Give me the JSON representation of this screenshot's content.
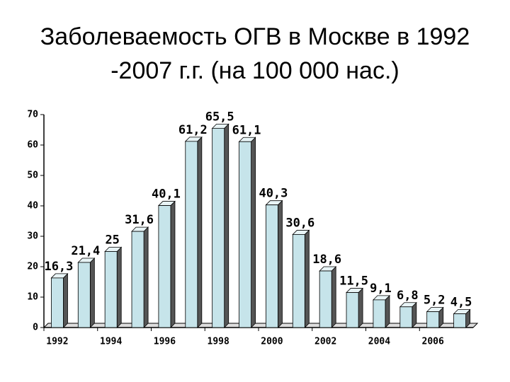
{
  "chart_data": {
    "type": "bar",
    "title": "Заболеваемость ОГВ в Москве в 1992 -2007 г.г. (на 100 000 нас.)",
    "categories": [
      "1992",
      null,
      "1994",
      null,
      "1996",
      null,
      "1998",
      null,
      "2000",
      null,
      "2002",
      null,
      "2004",
      null,
      "2006",
      null
    ],
    "values": [
      16.3,
      21.4,
      25,
      31.6,
      40.1,
      61.2,
      65.5,
      61.1,
      40.3,
      30.6,
      18.6,
      11.5,
      9.1,
      6.8,
      5.2,
      4.5
    ],
    "value_labels": [
      "16,3",
      "21,4",
      "25",
      "31,6",
      "40,1",
      "61,2",
      "65,5",
      "61,1",
      "40,3",
      "30,6",
      "18,6",
      "11,5",
      "9,1",
      "6,8",
      "5,2",
      "4,5"
    ],
    "color": "#c6e4ea",
    "ylim": [
      0,
      70
    ],
    "yticks": [
      0,
      10,
      20,
      30,
      40,
      50,
      60,
      70
    ],
    "grid": false
  }
}
